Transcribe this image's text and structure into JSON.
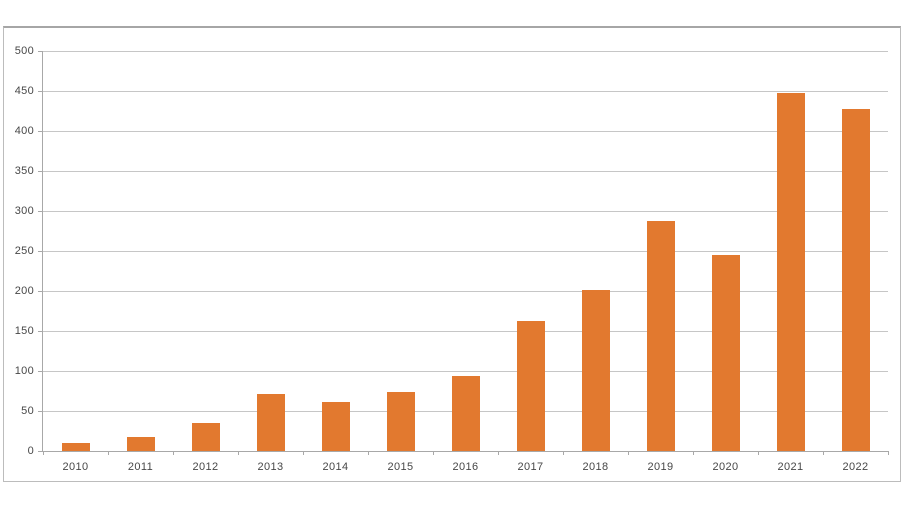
{
  "chart_data": {
    "type": "bar",
    "title": "",
    "xlabel": "",
    "ylabel": "",
    "categories": [
      "2010",
      "2011",
      "2012",
      "2013",
      "2014",
      "2015",
      "2016",
      "2017",
      "2018",
      "2019",
      "2020",
      "2021",
      "2022"
    ],
    "values": [
      10,
      17,
      35,
      71,
      61,
      74,
      94,
      162,
      201,
      287,
      245,
      447,
      427
    ],
    "ylim": [
      0,
      500
    ],
    "yticks": [
      0,
      50,
      100,
      150,
      200,
      250,
      300,
      350,
      400,
      450,
      500
    ],
    "grid": "horizontal",
    "legend": "none",
    "colors": {
      "bar": "#e2792f",
      "gridline": "#c6c6c6",
      "axis": "#a8a8a8",
      "tick_label": "#474747",
      "frame_border": "#b5b5b5",
      "background": "#ffffff"
    }
  }
}
